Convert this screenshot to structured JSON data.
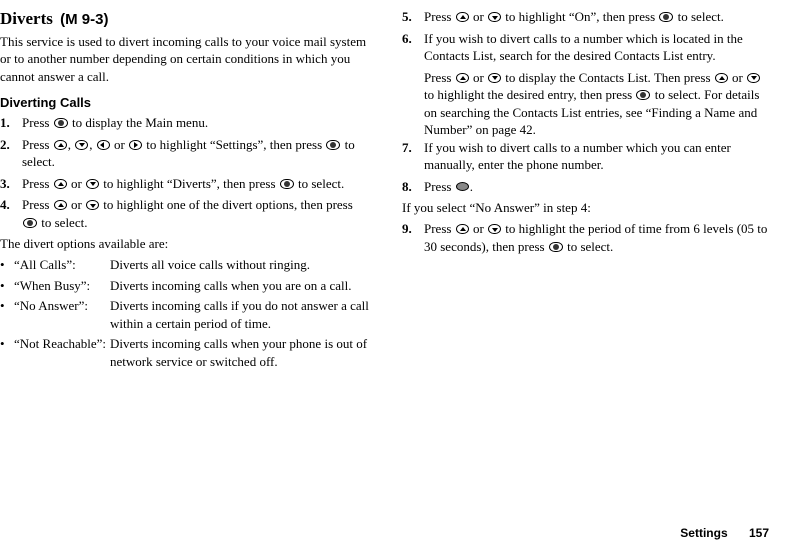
{
  "left": {
    "title": "Diverts",
    "menuRef": "(M 9-3)",
    "intro": "This service is used to divert incoming calls to your voice mail system or to another number depending on certain conditions in which you cannot answer a call.",
    "subhead": "Diverting Calls",
    "step1a": "Press ",
    "step1b": " to display the Main menu.",
    "step2a": "Press ",
    "step2b": ", ",
    "step2c": ", ",
    "step2d": " or ",
    "step2e": " to highlight “Settings”, then press ",
    "step2f": " to select.",
    "step3a": "Press ",
    "step3b": " or ",
    "step3c": " to highlight “Diverts”, then press ",
    "step3d": " to select.",
    "step4a": "Press ",
    "step4b": " or ",
    "step4c": " to highlight one of the divert options, then press ",
    "step4d": " to select.",
    "note": "The divert options available are:",
    "b1l": "“All Calls”:",
    "b1d": "Diverts all voice calls without ringing.",
    "b2l": "“When Busy”:",
    "b2d": "Diverts incoming calls when you are on a call.",
    "b3l": "“No Answer”:",
    "b3d": "Diverts incoming calls if you do not answer a call within a certain period of time.",
    "b4l": "“Not Reachable”:",
    "b4d": "Diverts incoming calls when your phone is out of network service or switched off."
  },
  "right": {
    "step5a": "Press ",
    "step5b": " or ",
    "step5c": " to highlight “On”, then press ",
    "step5d": " to select.",
    "step6": "If you wish to divert calls to a number which is located in the Contacts List, search for the desired Contacts List entry.",
    "step6s1": "Press ",
    "step6s2": " or ",
    "step6s3": " to display the Contacts List. Then press ",
    "step6s4": " or ",
    "step6s5": " to highlight the desired entry, then press ",
    "step6s6": " to select. For details on searching the Contacts List entries, see “Finding a Name and Number” on page 42.",
    "step7": "If you wish to divert calls to a number which you can enter manually, enter the phone number.",
    "step8a": "Press ",
    "step8b": ".",
    "cond": "If you select “No Answer” in step 4:",
    "step9a": "Press ",
    "step9b": " or ",
    "step9c": " to highlight the period of time from 6 levels (05 to 30 seconds), then press ",
    "step9d": " to select."
  },
  "footer": {
    "label": "Settings",
    "page": "157"
  },
  "nums": {
    "n1": "1.",
    "n2": "2.",
    "n3": "3.",
    "n4": "4.",
    "n5": "5.",
    "n6": "6.",
    "n7": "7.",
    "n8": "8.",
    "n9": "9."
  },
  "bullet": "•"
}
